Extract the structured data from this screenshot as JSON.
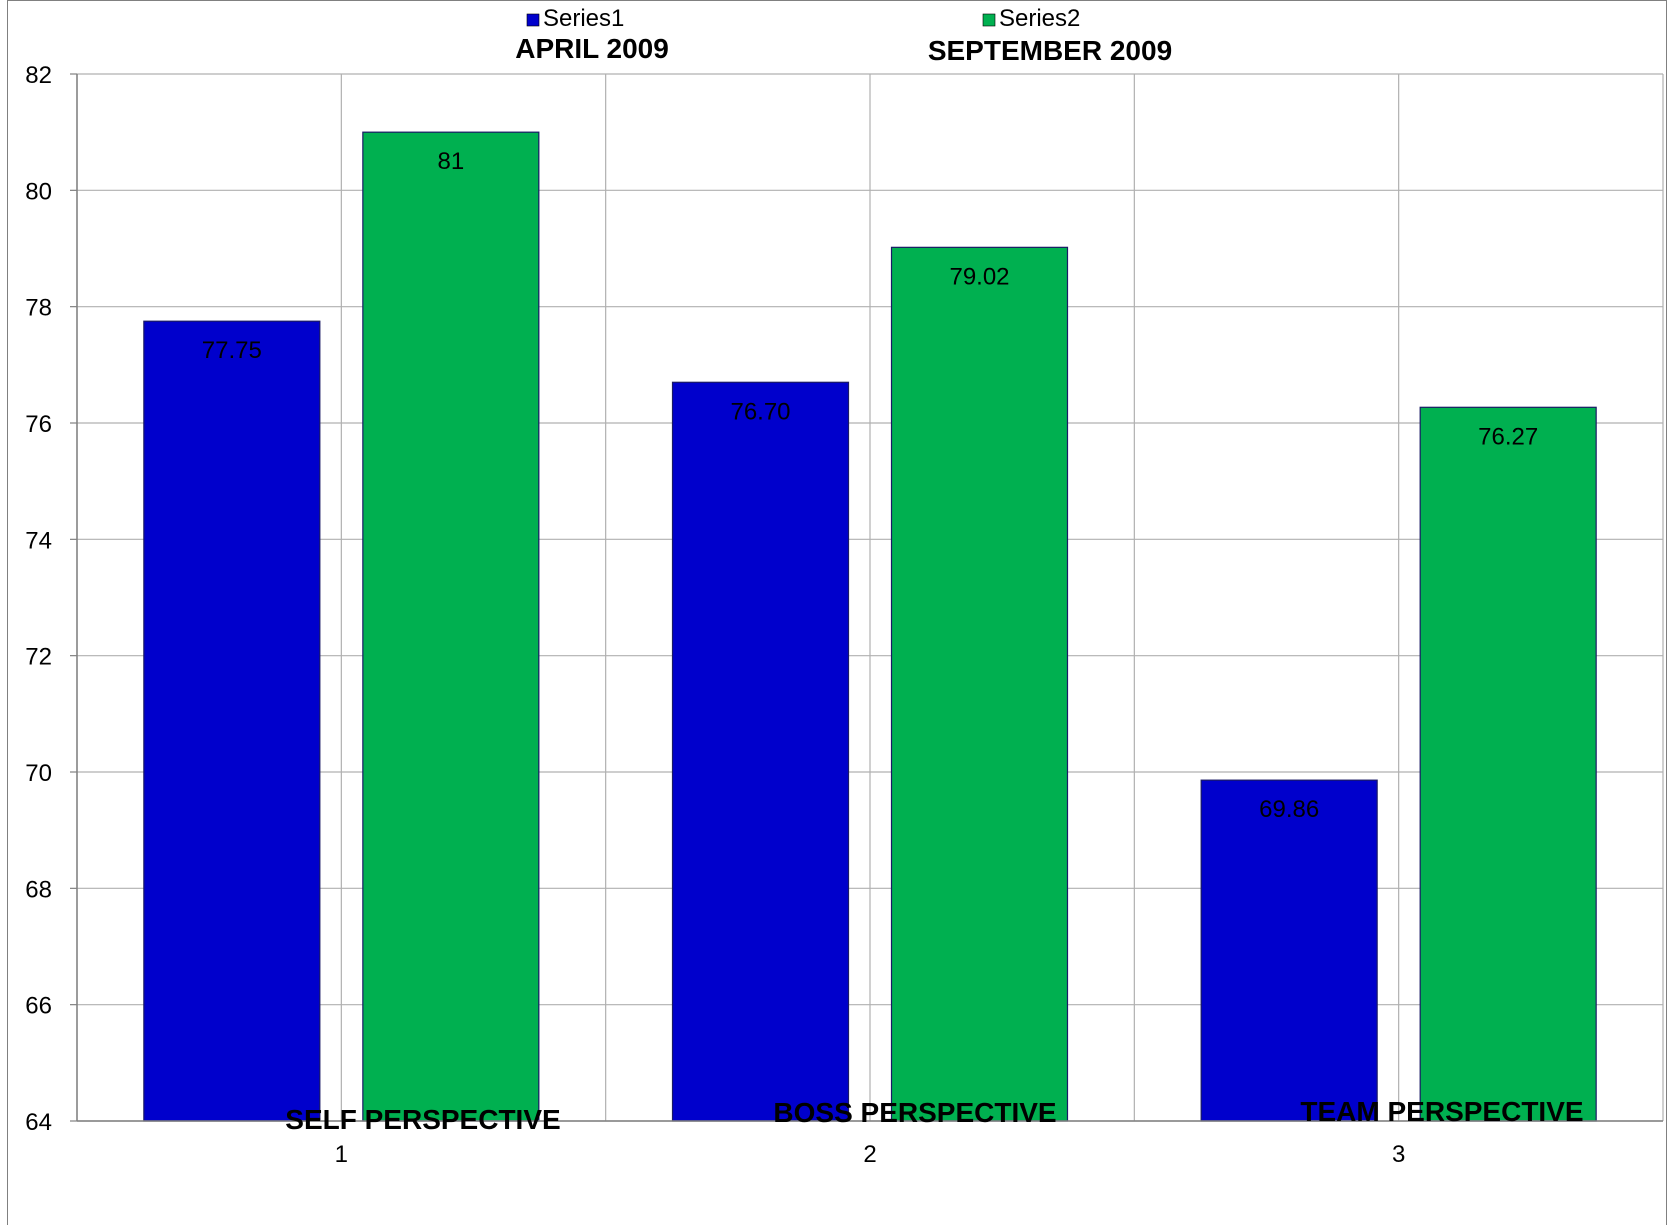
{
  "chart_data": {
    "type": "bar",
    "categories": [
      "1",
      "2",
      "3"
    ],
    "series": [
      {
        "name": "Series1",
        "values": [
          77.75,
          76.7,
          69.86
        ],
        "labels": [
          "77.75",
          "76.70",
          "69.86"
        ],
        "color": "#0000cc"
      },
      {
        "name": "Series2",
        "values": [
          81,
          79.02,
          76.27
        ],
        "labels": [
          "81",
          "79.02",
          "76.27"
        ],
        "color": "#00b050"
      }
    ],
    "ylim": [
      64,
      82
    ],
    "yticks": [
      64,
      66,
      68,
      70,
      72,
      74,
      76,
      78,
      80,
      82
    ],
    "grid": true,
    "legend": "top",
    "annotations": {
      "series1_heading": "APRIL 2009",
      "series2_heading": "SEPTEMBER 2009",
      "category_labels": [
        "SELF PERSPECTIVE",
        "BOSS PERSPECTIVE",
        "TEAM PERSPECTIVE"
      ]
    }
  }
}
